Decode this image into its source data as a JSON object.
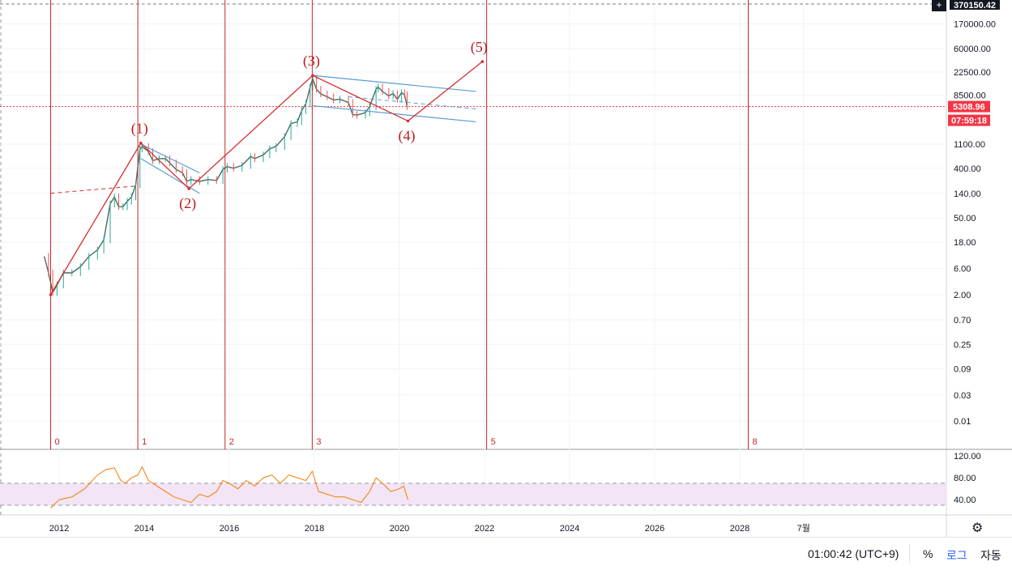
{
  "chart_data": [
    {
      "type": "line",
      "scale": "log",
      "price_ticks": [
        "370150.42",
        "170000.00",
        "60000.00",
        "22500.00",
        "8500.00",
        "5308.96",
        "1100.00",
        "400.00",
        "140.00",
        "50.00",
        "18.00",
        "6.00",
        "2.00",
        "0.70",
        "0.25",
        "0.09",
        "0.03",
        "0.01"
      ],
      "tick_values": [
        170000,
        60000,
        22500,
        8500,
        1100,
        400,
        140,
        50,
        18,
        6,
        2,
        0.7,
        0.25,
        0.09,
        0.03,
        0.01
      ],
      "top_tag": "370150.42",
      "current_price": "5308.96",
      "current_price_value": 5308.96,
      "countdown": "07:59:18",
      "x_ticks": [
        "2012",
        "2014",
        "2016",
        "2018",
        "2020",
        "2022",
        "2024",
        "2026",
        "2028",
        "7월"
      ],
      "x_tick_years": [
        2012,
        2014,
        2016,
        2018,
        2020,
        2022,
        2024,
        2026,
        2028,
        2029.5
      ],
      "wave_labels": [
        {
          "text": "(1)",
          "date": 2013.92,
          "price": 1150
        },
        {
          "text": "(2)",
          "date": 2015.05,
          "price": 170
        },
        {
          "text": "(3)",
          "date": 2017.96,
          "price": 19500
        },
        {
          "text": "(4)",
          "date": 2020.2,
          "price": 2900
        },
        {
          "text": "(5)",
          "date": 2021.9,
          "price": 35000
        }
      ],
      "wave_path": [
        {
          "date": 2011.8,
          "price": 2.0
        },
        {
          "date": 2013.92,
          "price": 1150
        },
        {
          "date": 2015.05,
          "price": 170
        },
        {
          "date": 2017.96,
          "price": 19500
        },
        {
          "date": 2020.2,
          "price": 2900
        },
        {
          "date": 2021.95,
          "price": 35000
        }
      ],
      "fib_lines": [
        {
          "label": "0",
          "date": 2011.8
        },
        {
          "label": "1",
          "date": 2013.85
        },
        {
          "label": "2",
          "date": 2015.9
        },
        {
          "label": "3",
          "date": 2017.95
        },
        {
          "label": "5",
          "date": 2022.05
        },
        {
          "label": "8",
          "date": 2028.2
        }
      ],
      "price_series": [
        [
          2011.65,
          10
        ],
        [
          2011.75,
          5
        ],
        [
          2011.85,
          2.2
        ],
        [
          2011.95,
          3
        ],
        [
          2012.1,
          5
        ],
        [
          2012.3,
          5
        ],
        [
          2012.5,
          6.5
        ],
        [
          2012.7,
          10
        ],
        [
          2012.9,
          13
        ],
        [
          2013.05,
          20
        ],
        [
          2013.2,
          90
        ],
        [
          2013.3,
          120
        ],
        [
          2013.4,
          80
        ],
        [
          2013.5,
          80
        ],
        [
          2013.6,
          100
        ],
        [
          2013.7,
          120
        ],
        [
          2013.8,
          200
        ],
        [
          2013.9,
          900
        ],
        [
          2013.95,
          1000
        ],
        [
          2014.1,
          800
        ],
        [
          2014.2,
          550
        ],
        [
          2014.35,
          600
        ],
        [
          2014.5,
          600
        ],
        [
          2014.6,
          500
        ],
        [
          2014.75,
          380
        ],
        [
          2014.9,
          330
        ],
        [
          2015.0,
          230
        ],
        [
          2015.1,
          250
        ],
        [
          2015.3,
          230
        ],
        [
          2015.5,
          250
        ],
        [
          2015.7,
          240
        ],
        [
          2015.85,
          380
        ],
        [
          2015.95,
          430
        ],
        [
          2016.1,
          400
        ],
        [
          2016.3,
          450
        ],
        [
          2016.5,
          650
        ],
        [
          2016.6,
          600
        ],
        [
          2016.8,
          700
        ],
        [
          2016.95,
          900
        ],
        [
          2017.1,
          1000
        ],
        [
          2017.3,
          1500
        ],
        [
          2017.45,
          2600
        ],
        [
          2017.6,
          2800
        ],
        [
          2017.7,
          4500
        ],
        [
          2017.8,
          6000
        ],
        [
          2017.9,
          12000
        ],
        [
          2017.96,
          17000
        ],
        [
          2018.05,
          11000
        ],
        [
          2018.15,
          9000
        ],
        [
          2018.3,
          8000
        ],
        [
          2018.45,
          7000
        ],
        [
          2018.6,
          7200
        ],
        [
          2018.8,
          6300
        ],
        [
          2018.9,
          3800
        ],
        [
          2019.0,
          3700
        ],
        [
          2019.2,
          4100
        ],
        [
          2019.3,
          5300
        ],
        [
          2019.45,
          11000
        ],
        [
          2019.5,
          12000
        ],
        [
          2019.6,
          10000
        ],
        [
          2019.75,
          8300
        ],
        [
          2019.85,
          9200
        ],
        [
          2019.95,
          7200
        ],
        [
          2020.05,
          9500
        ],
        [
          2020.12,
          8700
        ],
        [
          2020.18,
          5300
        ]
      ],
      "channels": [
        [
          {
            "date": 2013.92,
            "p1": 1100,
            "p2": 600
          },
          {
            "date": 2015.3,
            "p1": 330,
            "p2": 140
          }
        ],
        [
          {
            "date": 2017.96,
            "p1": 19500,
            "p2": 5500
          },
          {
            "date": 2021.8,
            "p1": 10000,
            "p2": 2800
          }
        ]
      ],
      "dashed_lines": [
        {
          "from": {
            "date": 2011.8,
            "price": 140
          },
          "to": {
            "date": 2013.8,
            "price": 190
          }
        },
        {
          "from": {
            "date": 2018.8,
            "price": 8000
          },
          "to": {
            "date": 2021.8,
            "price": 4800
          }
        }
      ],
      "colors": {
        "wave": "#d32f2f",
        "channel": "#5b9bd5",
        "fib": "#c62828",
        "price_tag": "#f23645",
        "rsi": "#f57c00",
        "rsi_band": "#f3e5f5",
        "up": "#26a69a",
        "down": "#ef5350"
      }
    },
    {
      "type": "line",
      "name_axis": "rsi",
      "y_ticks": [
        "120.00",
        "80.00",
        "40.00"
      ],
      "tick_values": [
        120,
        80,
        40
      ],
      "band": [
        70,
        30
      ],
      "ylim": [
        20,
        130
      ],
      "x": [
        2011.8,
        2012.0,
        2012.3,
        2012.6,
        2012.9,
        2013.1,
        2013.3,
        2013.45,
        2013.55,
        2013.7,
        2013.85,
        2013.95,
        2014.1,
        2014.3,
        2014.5,
        2014.7,
        2014.9,
        2015.1,
        2015.3,
        2015.5,
        2015.7,
        2015.85,
        2016.0,
        2016.2,
        2016.4,
        2016.6,
        2016.8,
        2017.0,
        2017.2,
        2017.4,
        2017.6,
        2017.8,
        2017.95,
        2018.1,
        2018.3,
        2018.5,
        2018.7,
        2018.9,
        2019.1,
        2019.3,
        2019.45,
        2019.6,
        2019.8,
        2020.0,
        2020.1,
        2020.2
      ],
      "y": [
        25,
        40,
        45,
        60,
        85,
        95,
        98,
        75,
        70,
        80,
        85,
        100,
        75,
        65,
        55,
        45,
        40,
        35,
        50,
        45,
        55,
        75,
        70,
        60,
        75,
        65,
        80,
        85,
        70,
        85,
        80,
        75,
        92,
        55,
        50,
        45,
        45,
        40,
        35,
        55,
        80,
        70,
        55,
        60,
        65,
        40
      ]
    }
  ],
  "bottom_bar": {
    "time": "01:00:42 (UTC+9)",
    "percent": "%",
    "log": "로그",
    "auto": "자동"
  },
  "icons": {
    "settings": "gear-icon",
    "crosshair": "crosshair-icon"
  }
}
